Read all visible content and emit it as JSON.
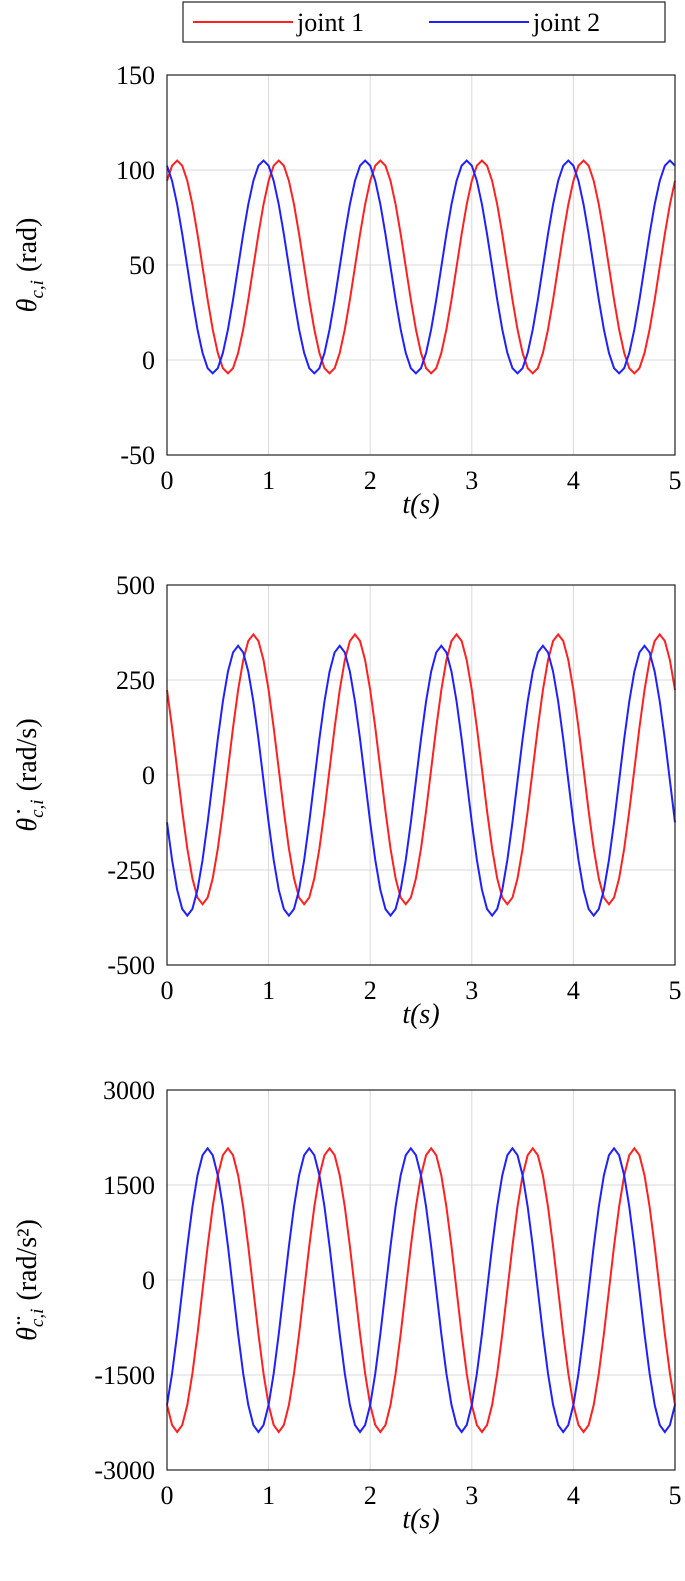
{
  "chart_data": [
    {
      "type": "line",
      "ylabel": {
        "symbol": "θ",
        "subscript": "c,i",
        "unit": "(rad)"
      },
      "xlabel": "t(s)",
      "xlim": [
        0,
        5
      ],
      "xticks": [
        0,
        1,
        2,
        3,
        4,
        5
      ],
      "ylim": [
        -50,
        150
      ],
      "yticks": [
        -50,
        0,
        50,
        100,
        150
      ],
      "grid": true,
      "legend": "top",
      "x": [
        0,
        0.05,
        0.1,
        0.15,
        0.2,
        0.25,
        0.3,
        0.35,
        0.4,
        0.45,
        0.5,
        0.55,
        0.6,
        0.65,
        0.7,
        0.75,
        0.8,
        0.85,
        0.9,
        0.95,
        1,
        1.05,
        1.1,
        1.15,
        1.2,
        1.25,
        1.3,
        1.35,
        1.4,
        1.45,
        1.5,
        1.55,
        1.6,
        1.65,
        1.7,
        1.75,
        1.8,
        1.85,
        1.9,
        1.95,
        2,
        2.05,
        2.1,
        2.15,
        2.2,
        2.25,
        2.3,
        2.35,
        2.4,
        2.45,
        2.5,
        2.55,
        2.6,
        2.65,
        2.7,
        2.75,
        2.8,
        2.85,
        2.9,
        2.95,
        3,
        3.05,
        3.1,
        3.15,
        3.2,
        3.25,
        3.3,
        3.35,
        3.4,
        3.45,
        3.5,
        3.55,
        3.6,
        3.65,
        3.7,
        3.75,
        3.8,
        3.85,
        3.9,
        3.95,
        4,
        4.05,
        4.1,
        4.15,
        4.2,
        4.25,
        4.3,
        4.35,
        4.4,
        4.45,
        4.5,
        4.55,
        4.6,
        4.65,
        4.7,
        4.75,
        4.8,
        4.85,
        4.9,
        4.95,
        5
      ],
      "series": [
        {
          "name": "joint 1",
          "color": "#ff2020",
          "values": [
            94.3,
            102.3,
            105,
            102.3,
            94.3,
            81.9,
            66.3,
            49,
            31.7,
            16.1,
            3.7,
            -4.3,
            -7,
            -4.3,
            3.7,
            16.1,
            31.7,
            49,
            66.3,
            81.9,
            94.3,
            102.3,
            105,
            102.3,
            94.3,
            81.9,
            66.3,
            49,
            31.7,
            16.1,
            3.7,
            -4.3,
            -7,
            -4.3,
            3.7,
            16.1,
            31.7,
            49,
            66.3,
            81.9,
            94.3,
            102.3,
            105,
            102.3,
            94.3,
            81.9,
            66.3,
            49,
            31.7,
            16.1,
            3.7,
            -4.3,
            -7,
            -4.3,
            3.7,
            16.1,
            31.7,
            49,
            66.3,
            81.9,
            94.3,
            102.3,
            105,
            102.3,
            94.3,
            81.9,
            66.3,
            49,
            31.7,
            16.1,
            3.7,
            -4.3,
            -7,
            -4.3,
            3.7,
            16.1,
            31.7,
            49,
            66.3,
            81.9,
            94.3,
            102.3,
            105,
            102.3,
            94.3,
            81.9,
            66.3,
            49,
            31.7,
            16.1,
            3.7,
            -4.3,
            -7,
            -4.3,
            3.7,
            16.1,
            31.7,
            49,
            66.3,
            81.9,
            94.3
          ]
        },
        {
          "name": "joint 2",
          "color": "#2020ff",
          "values": [
            102.3,
            94.3,
            81.9,
            66.3,
            49,
            31.7,
            16.1,
            3.7,
            -4.3,
            -7,
            -4.3,
            3.7,
            16.1,
            31.7,
            49,
            66.3,
            81.9,
            94.3,
            102.3,
            105,
            102.3,
            94.3,
            81.9,
            66.3,
            49,
            31.7,
            16.1,
            3.7,
            -4.3,
            -7,
            -4.3,
            3.7,
            16.1,
            31.7,
            49,
            66.3,
            81.9,
            94.3,
            102.3,
            105,
            102.3,
            94.3,
            81.9,
            66.3,
            49,
            31.7,
            16.1,
            3.7,
            -4.3,
            -7,
            -4.3,
            3.7,
            16.1,
            31.7,
            49,
            66.3,
            81.9,
            94.3,
            102.3,
            105,
            102.3,
            94.3,
            81.9,
            66.3,
            49,
            31.7,
            16.1,
            3.7,
            -4.3,
            -7,
            -4.3,
            3.7,
            16.1,
            31.7,
            49,
            66.3,
            81.9,
            94.3,
            102.3,
            105,
            102.3,
            94.3,
            81.9,
            66.3,
            49,
            31.7,
            16.1,
            3.7,
            -4.3,
            -7,
            -4.3,
            3.7,
            16.1,
            31.7,
            49,
            66.3,
            81.9,
            94.3,
            102.3,
            105,
            102.3
          ]
        }
      ]
    },
    {
      "type": "line",
      "ylabel": {
        "symbol": "θ̇",
        "subscript": "c,i",
        "unit": "(rad/s)"
      },
      "xlabel": "t(s)",
      "xlim": [
        0,
        5
      ],
      "xticks": [
        0,
        1,
        2,
        3,
        4,
        5
      ],
      "ylim": [
        -500,
        500
      ],
      "yticks": [
        -500,
        -250,
        0,
        250,
        500
      ],
      "grid": true,
      "x": [
        0,
        0.05,
        0.1,
        0.15,
        0.2,
        0.25,
        0.3,
        0.35,
        0.4,
        0.45,
        0.5,
        0.55,
        0.6,
        0.65,
        0.7,
        0.75,
        0.8,
        0.85,
        0.9,
        0.95,
        1,
        1.05,
        1.1,
        1.15,
        1.2,
        1.25,
        1.3,
        1.35,
        1.4,
        1.45,
        1.5,
        1.55,
        1.6,
        1.65,
        1.7,
        1.75,
        1.8,
        1.85,
        1.9,
        1.95,
        2,
        2.05,
        2.1,
        2.15,
        2.2,
        2.25,
        2.3,
        2.35,
        2.4,
        2.45,
        2.5,
        2.55,
        2.6,
        2.65,
        2.7,
        2.75,
        2.8,
        2.85,
        2.9,
        2.95,
        3,
        3.05,
        3.1,
        3.15,
        3.2,
        3.25,
        3.3,
        3.35,
        3.4,
        3.45,
        3.5,
        3.55,
        3.6,
        3.65,
        3.7,
        3.75,
        3.8,
        3.85,
        3.9,
        3.95,
        4,
        4.05,
        4.1,
        4.15,
        4.2,
        4.25,
        4.3,
        4.35,
        4.4,
        4.45,
        4.5,
        4.55,
        4.6,
        4.65,
        4.7,
        4.75,
        4.8,
        4.85,
        4.9,
        4.95,
        5
      ],
      "series": [
        {
          "name": "joint 1",
          "color": "#ff2020",
          "values": [
            223.7,
            124.7,
            15,
            -94.7,
            -193.7,
            -272.2,
            -322.6,
            -340,
            -322.6,
            -272.2,
            -193.7,
            -94.7,
            15,
            124.7,
            223.7,
            302.2,
            352.6,
            370,
            352.6,
            302.2,
            223.7,
            124.7,
            15,
            -94.7,
            -193.7,
            -272.2,
            -322.6,
            -340,
            -322.6,
            -272.2,
            -193.7,
            -94.7,
            15,
            124.7,
            223.7,
            302.2,
            352.6,
            370,
            352.6,
            302.2,
            223.7,
            124.7,
            15,
            -94.7,
            -193.7,
            -272.2,
            -322.6,
            -340,
            -322.6,
            -272.2,
            -193.7,
            -94.7,
            15,
            124.7,
            223.7,
            302.2,
            352.6,
            370,
            352.6,
            302.2,
            223.7,
            124.7,
            15,
            -94.7,
            -193.7,
            -272.2,
            -322.6,
            -340,
            -322.6,
            -272.2,
            -193.7,
            -94.7,
            15,
            124.7,
            223.7,
            302.2,
            352.6,
            370,
            352.6,
            302.2,
            223.7,
            124.7,
            15,
            -94.7,
            -193.7,
            -272.2,
            -322.6,
            -340,
            -322.6,
            -272.2,
            -193.7,
            -94.7,
            15,
            124.7,
            223.7,
            302.2,
            352.6,
            370,
            352.6,
            302.2,
            223.7
          ]
        },
        {
          "name": "joint 2",
          "color": "#2020ff",
          "values": [
            -124.7,
            -223.7,
            -302.2,
            -352.6,
            -370,
            -352.6,
            -302.2,
            -223.7,
            -124.7,
            -15,
            94.7,
            193.7,
            272.2,
            322.6,
            340,
            322.6,
            272.2,
            193.7,
            94.7,
            -15,
            -124.7,
            -223.7,
            -302.2,
            -352.6,
            -370,
            -352.6,
            -302.2,
            -223.7,
            -124.7,
            -15,
            94.7,
            193.7,
            272.2,
            322.6,
            340,
            322.6,
            272.2,
            193.7,
            94.7,
            -15,
            -124.7,
            -223.7,
            -302.2,
            -352.6,
            -370,
            -352.6,
            -302.2,
            -223.7,
            -124.7,
            -15,
            94.7,
            193.7,
            272.2,
            322.6,
            340,
            322.6,
            272.2,
            193.7,
            94.7,
            -15,
            -124.7,
            -223.7,
            -302.2,
            -352.6,
            -370,
            -352.6,
            -302.2,
            -223.7,
            -124.7,
            -15,
            94.7,
            193.7,
            272.2,
            322.6,
            340,
            322.6,
            272.2,
            193.7,
            94.7,
            -15,
            -124.7,
            -223.7,
            -302.2,
            -352.6,
            -370,
            -352.6,
            -302.2,
            -223.7,
            -124.7,
            -15,
            94.7,
            193.7,
            272.2,
            322.6,
            340,
            322.6,
            272.2,
            193.7,
            94.7,
            -15,
            -124.7
          ]
        }
      ]
    },
    {
      "type": "line",
      "ylabel": {
        "symbol": "θ̈",
        "subscript": "c,i",
        "unit": "(rad/s²)"
      },
      "xlabel": "t(s)",
      "xlim": [
        0,
        5
      ],
      "xticks": [
        0,
        1,
        2,
        3,
        4,
        5
      ],
      "ylim": [
        -3000,
        3000
      ],
      "yticks": [
        -3000,
        -1500,
        0,
        1500,
        3000
      ],
      "grid": true,
      "x": [
        0,
        0.05,
        0.1,
        0.15,
        0.2,
        0.25,
        0.3,
        0.35,
        0.4,
        0.45,
        0.5,
        0.55,
        0.6,
        0.65,
        0.7,
        0.75,
        0.8,
        0.85,
        0.9,
        0.95,
        1,
        1.05,
        1.1,
        1.15,
        1.2,
        1.25,
        1.3,
        1.35,
        1.4,
        1.45,
        1.5,
        1.55,
        1.6,
        1.65,
        1.7,
        1.75,
        1.8,
        1.85,
        1.9,
        1.95,
        2,
        2.05,
        2.1,
        2.15,
        2.2,
        2.25,
        2.3,
        2.35,
        2.4,
        2.45,
        2.5,
        2.55,
        2.6,
        2.65,
        2.7,
        2.75,
        2.8,
        2.85,
        2.9,
        2.95,
        3,
        3.05,
        3.1,
        3.15,
        3.2,
        3.25,
        3.3,
        3.35,
        3.4,
        3.45,
        3.5,
        3.55,
        3.6,
        3.65,
        3.7,
        3.75,
        3.8,
        3.85,
        3.9,
        3.95,
        4,
        4.05,
        4.1,
        4.15,
        4.2,
        4.25,
        4.3,
        4.35,
        4.4,
        4.45,
        4.5,
        4.55,
        4.6,
        4.65,
        4.7,
        4.75,
        4.8,
        4.85,
        4.9,
        4.95,
        5
      ],
      "series": [
        {
          "name": "joint 1",
          "color": "#ff2020",
          "values": [
            -1972.2,
            -2290.2,
            -2400,
            -2290.2,
            -1972.2,
            -1476.6,
            -852.2,
            -160,
            532.2,
            1156.6,
            1652.2,
            1970.2,
            2080,
            1970.2,
            1652.2,
            1156.6,
            532.2,
            -160,
            -852.2,
            -1476.6,
            -1972.2,
            -2290.2,
            -2400,
            -2290.2,
            -1972.2,
            -1476.6,
            -852.2,
            -160,
            532.2,
            1156.6,
            1652.2,
            1970.2,
            2080,
            1970.2,
            1652.2,
            1156.6,
            532.2,
            -160,
            -852.2,
            -1476.6,
            -1972.2,
            -2290.2,
            -2400,
            -2290.2,
            -1972.2,
            -1476.6,
            -852.2,
            -160,
            532.2,
            1156.6,
            1652.2,
            1970.2,
            2080,
            1970.2,
            1652.2,
            1156.6,
            532.2,
            -160,
            -852.2,
            -1476.6,
            -1972.2,
            -2290.2,
            -2400,
            -2290.2,
            -1972.2,
            -1476.6,
            -852.2,
            -160,
            532.2,
            1156.6,
            1652.2,
            1970.2,
            2080,
            1970.2,
            1652.2,
            1156.6,
            532.2,
            -160,
            -852.2,
            -1476.6,
            -1972.2,
            -2290.2,
            -2400,
            -2290.2,
            -1972.2,
            -1476.6,
            -852.2,
            -160,
            532.2,
            1156.6,
            1652.2,
            1970.2,
            2080,
            1970.2,
            1652.2,
            1156.6,
            532.2,
            -160,
            -852.2,
            -1476.6,
            -1972.2
          ]
        },
        {
          "name": "joint 2",
          "color": "#2020ff",
          "values": [
            -1972.2,
            -1476.6,
            -852.2,
            -160,
            532.2,
            1156.6,
            1652.2,
            1970.2,
            2080,
            1970.2,
            1652.2,
            1156.6,
            532.2,
            -160,
            -852.2,
            -1476.6,
            -1972.2,
            -2290.2,
            -2400,
            -2290.2,
            -1972.2,
            -1476.6,
            -852.2,
            -160,
            532.2,
            1156.6,
            1652.2,
            1970.2,
            2080,
            1970.2,
            1652.2,
            1156.6,
            532.2,
            -160,
            -852.2,
            -1476.6,
            -1972.2,
            -2290.2,
            -2400,
            -2290.2,
            -1972.2,
            -1476.6,
            -852.2,
            -160,
            532.2,
            1156.6,
            1652.2,
            1970.2,
            2080,
            1970.2,
            1652.2,
            1156.6,
            532.2,
            -160,
            -852.2,
            -1476.6,
            -1972.2,
            -2290.2,
            -2400,
            -2290.2,
            -1972.2,
            -1476.6,
            -852.2,
            -160,
            532.2,
            1156.6,
            1652.2,
            1970.2,
            2080,
            1970.2,
            1652.2,
            1156.6,
            532.2,
            -160,
            -852.2,
            -1476.6,
            -1972.2,
            -2290.2,
            -2400,
            -2290.2,
            -1972.2,
            -1476.6,
            -852.2,
            -160,
            532.2,
            1156.6,
            1652.2,
            1970.2,
            2080,
            1970.2,
            1652.2,
            1156.6,
            532.2,
            -160,
            -852.2,
            -1476.6,
            -1972.2,
            -2290.2,
            -2400,
            -2290.2,
            -1972.2
          ]
        }
      ]
    }
  ]
}
